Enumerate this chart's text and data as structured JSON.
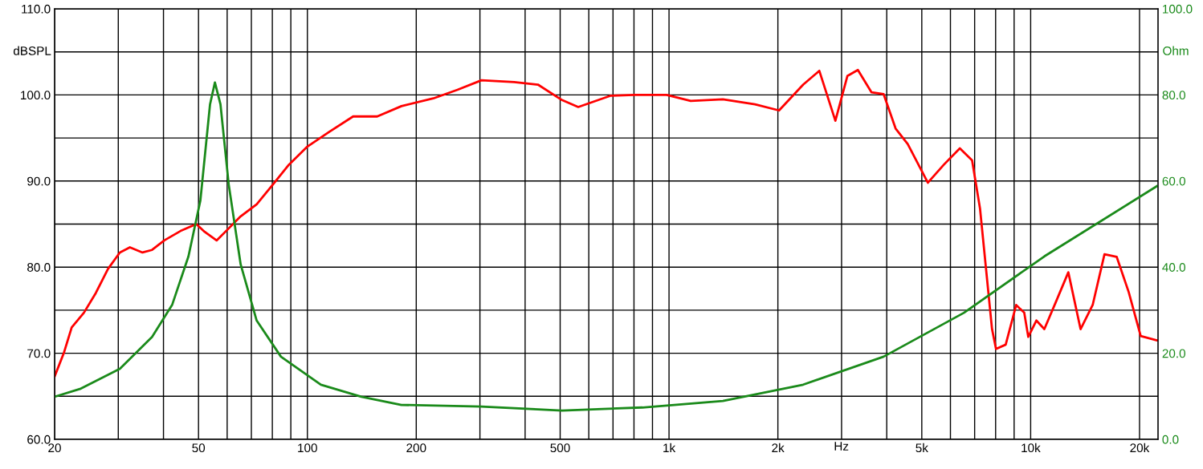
{
  "chart_data": {
    "type": "line",
    "xlabel": "Hz",
    "ylabel": "dBSPL",
    "y2label": "Ohm",
    "log": "x",
    "grid": true,
    "marker": "none",
    "line_style": "solid",
    "xlim": [
      20,
      22500
    ],
    "xticks": [
      20,
      {
        "value": 30,
        "label": null
      },
      {
        "value": 40,
        "label": null
      },
      50,
      {
        "value": 60,
        "label": null
      },
      {
        "value": 70,
        "label": null
      },
      {
        "value": 80,
        "label": null
      },
      {
        "value": 90,
        "label": null
      },
      100,
      200,
      {
        "value": 300,
        "label": null
      },
      {
        "value": 400,
        "label": null
      },
      500,
      {
        "value": 600,
        "label": null
      },
      {
        "value": 700,
        "label": null
      },
      {
        "value": 800,
        "label": null
      },
      {
        "value": 900,
        "label": null
      },
      {
        "value": 1000,
        "label": "1k"
      },
      {
        "value": 2000,
        "label": "2k"
      },
      {
        "value": 3000,
        "label": null
      },
      {
        "value": 4000,
        "label": null
      },
      {
        "value": 5000,
        "label": "5k"
      },
      {
        "value": 6000,
        "label": null
      },
      {
        "value": 7000,
        "label": null
      },
      {
        "value": 8000,
        "label": null
      },
      {
        "value": 9000,
        "label": null
      },
      {
        "value": 10000,
        "label": "10k"
      },
      {
        "value": 20000,
        "label": "20k"
      }
    ],
    "ylim": [
      60,
      110
    ],
    "yticks": [
      {
        "value": 60,
        "label": "60.0"
      },
      {
        "value": 65,
        "label": null
      },
      {
        "value": 70,
        "label": "70.0"
      },
      {
        "value": 75,
        "label": null
      },
      {
        "value": 80,
        "label": "80.0"
      },
      {
        "value": 85,
        "label": null
      },
      {
        "value": 90,
        "label": "90.0"
      },
      {
        "value": 95,
        "label": null
      },
      {
        "value": 100,
        "label": "100.0"
      },
      {
        "value": 105,
        "label": null
      },
      {
        "value": 110,
        "label": "110.0"
      }
    ],
    "y2lim": [
      0,
      100
    ],
    "y2ticks": [
      {
        "value": 0,
        "label": "0.0"
      },
      {
        "value": 20,
        "label": "20.0"
      },
      {
        "value": 40,
        "label": "40.0"
      },
      {
        "value": 60,
        "label": "60.0"
      },
      {
        "value": 80,
        "label": "80.0"
      },
      {
        "value": 100,
        "label": "100.0"
      }
    ],
    "series": [
      {
        "color": "#ff0000",
        "x": [
          20,
          21.2,
          22.3,
          24.1,
          26.0,
          28.1,
          30.3,
          32.3,
          35.0,
          37.2,
          40.2,
          44.6,
          49.3,
          52.0,
          56.1,
          60.6,
          65.4,
          72.4,
          80.3,
          88.9,
          100,
          114.8,
          133.8,
          156,
          182,
          223,
          260,
          303,
          373,
          434,
          506,
          561,
          688,
          802,
          985,
          1148,
          1409,
          1729,
          2015,
          2350,
          2604,
          2884,
          3113,
          3328,
          3631,
          3920,
          4232,
          4571,
          5197,
          5754,
          6370,
          6887,
          7244,
          7820,
          8020,
          8530,
          9120,
          9600,
          9850,
          10370,
          10910,
          11780,
          12710,
          13740,
          14840,
          16000,
          17290,
          18670,
          20150,
          22330
        ],
        "values": [
          67.3,
          70,
          73,
          74.7,
          77,
          79.8,
          81.7,
          82.3,
          81.7,
          82,
          83.1,
          84.2,
          85,
          84.1,
          83.1,
          84.5,
          85.9,
          87.3,
          89.6,
          91.9,
          94,
          95.7,
          97.5,
          97.5,
          98.7,
          99.6,
          100.6,
          101.7,
          101.5,
          101.2,
          99.4,
          98.6,
          99.9,
          100,
          100,
          99.3,
          99.5,
          98.9,
          98.2,
          101.2,
          102.8,
          97,
          102.2,
          102.9,
          100.3,
          100.1,
          96.1,
          94.3,
          89.8,
          91.9,
          93.8,
          92.4,
          86.8,
          72.8,
          70.5,
          71,
          75.6,
          74.7,
          71.9,
          73.8,
          72.8,
          76.1,
          79.4,
          72.8,
          75.6,
          81.5,
          81.2,
          77.1,
          72,
          71.5
        ]
      },
      {
        "color": "#1a8a1a",
        "axis": "y2",
        "x": [
          20,
          23.5,
          30.3,
          37.2,
          42.3,
          46.9,
          50.6,
          53.8,
          55.5,
          57.5,
          60.6,
          65.4,
          72.4,
          84.5,
          109,
          141,
          182,
          303,
          506,
          844,
          1409,
          2350,
          3920,
          6540,
          10910,
          22330
        ],
        "values": [
          9.9,
          11.7,
          16.4,
          23.8,
          31.3,
          42.5,
          55.5,
          77.8,
          82.9,
          77.8,
          59.2,
          40.6,
          27.6,
          19.2,
          12.7,
          9.9,
          8,
          7.6,
          6.7,
          7.4,
          8.9,
          12.7,
          19.2,
          29.4,
          42.5,
          58.8
        ]
      }
    ]
  }
}
